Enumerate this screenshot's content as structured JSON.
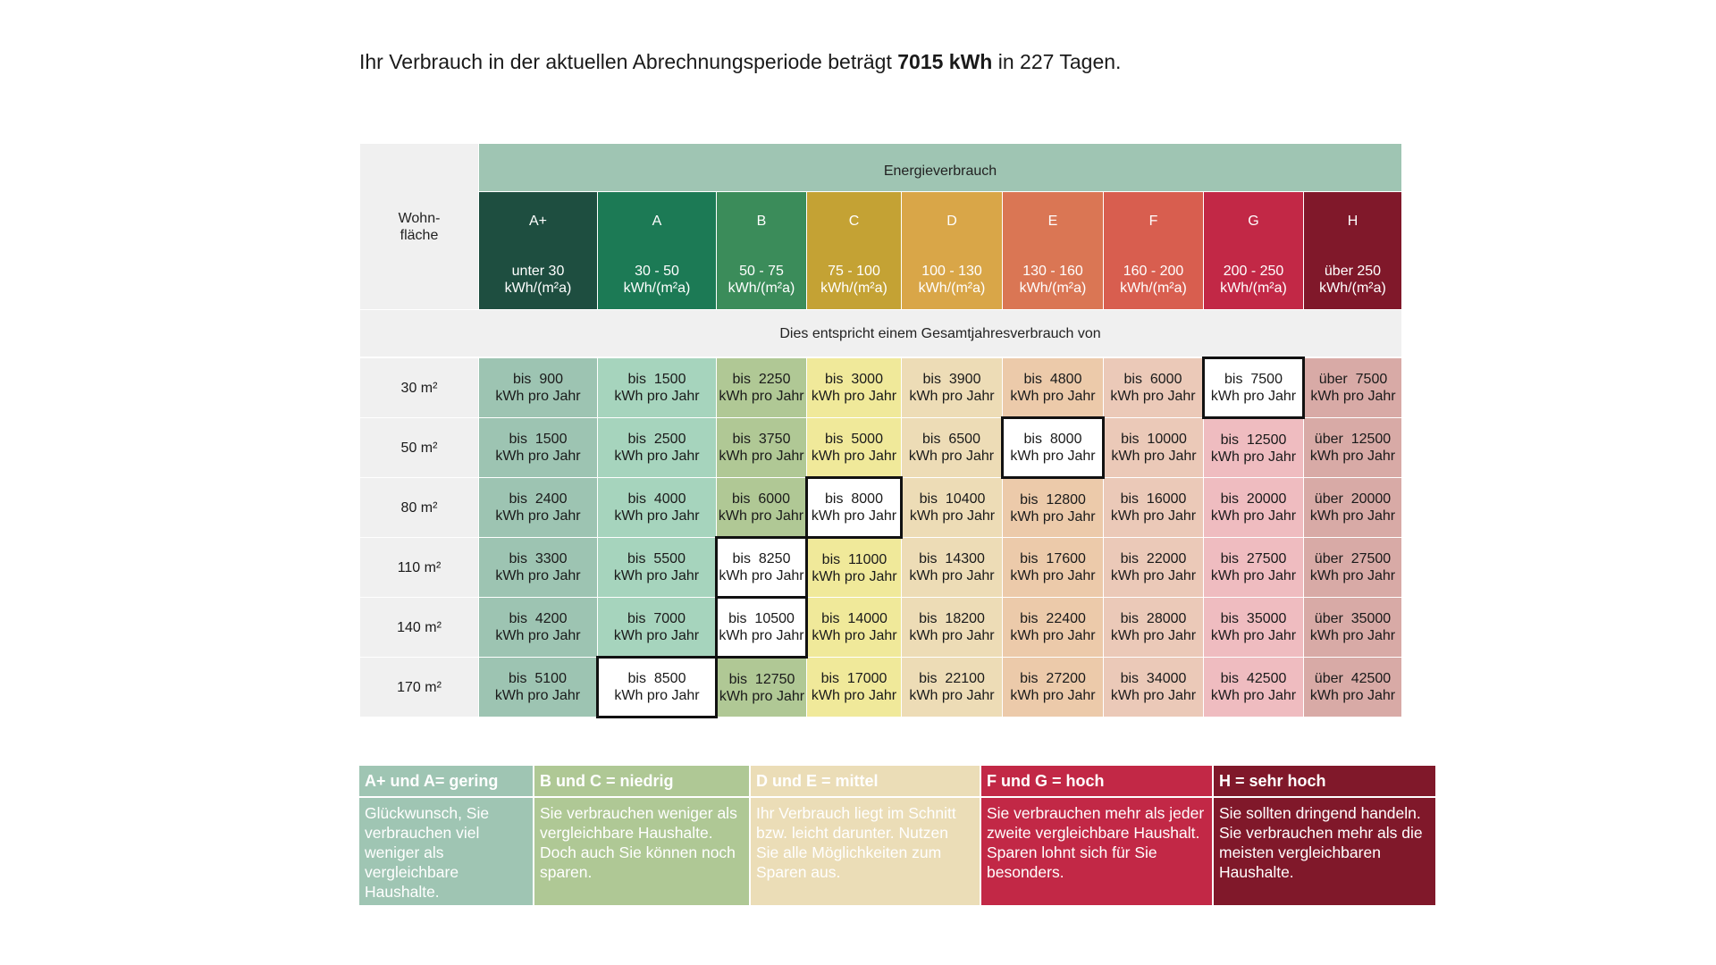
{
  "intro": {
    "prefix": "Ihr Verbrauch in der aktuellen Abrechnungsperiode beträgt ",
    "consumption": "7015 kWh",
    "suffix": " in 227 Tagen."
  },
  "table": {
    "area_header": "Wohn-\nfläche",
    "energy_header": "Energieverbrauch",
    "note": "Dies entspricht einem Gesamtjahresverbrauch von",
    "unit_label": "kWh pro Jahr",
    "classes": [
      {
        "label": "A+",
        "range": "unter 30",
        "range_unit": "kWh/(m²a)",
        "header_color": "#1e4e40",
        "cell_color": "#9dc4b2"
      },
      {
        "label": "A",
        "range": "30 - 50",
        "range_unit": "kWh/(m²a)",
        "header_color": "#1c7a55",
        "cell_color": "#a6d4bd"
      },
      {
        "label": "B",
        "range": "50 - 75",
        "range_unit": "kWh/(m²a)",
        "header_color": "#3b8c5a",
        "cell_color": "#b0c895"
      },
      {
        "label": "C",
        "range": "75 - 100",
        "range_unit": "kWh/(m²a)",
        "header_color": "#c4a234",
        "cell_color": "#f0e99a"
      },
      {
        "label": "D",
        "range": "100 - 130",
        "range_unit": "kWh/(m²a)",
        "header_color": "#d9a648",
        "cell_color": "#eddcb6"
      },
      {
        "label": "E",
        "range": "130 - 160",
        "range_unit": "kWh/(m²a)",
        "header_color": "#da7654",
        "cell_color": "#eccaaa"
      },
      {
        "label": "F",
        "range": "160 - 200",
        "range_unit": "kWh/(m²a)",
        "header_color": "#d85e4f",
        "cell_color": "#ebc9b8"
      },
      {
        "label": "G",
        "range": "200 - 250",
        "range_unit": "kWh/(m²a)",
        "header_color": "#c22846",
        "cell_color": "#efbcc0"
      },
      {
        "label": "H",
        "range": "über 250",
        "range_unit": "kWh/(m²a)",
        "header_color": "#80182a",
        "cell_color": "#d8aaa6"
      }
    ],
    "rows": [
      {
        "area": "30 m²",
        "values": [
          "bis  900",
          "bis  1500",
          "bis  2250",
          "bis  3000",
          "bis  3900",
          "bis  4800",
          "bis  6000",
          "bis  7500",
          "über  7500"
        ],
        "highlight": 7
      },
      {
        "area": "50 m²",
        "values": [
          "bis  1500",
          "bis  2500",
          "bis  3750",
          "bis  5000",
          "bis  6500",
          "bis  8000",
          "bis  10000",
          "bis  12500",
          "über  12500"
        ],
        "highlight": 5
      },
      {
        "area": "80 m²",
        "values": [
          "bis  2400",
          "bis  4000",
          "bis  6000",
          "bis  8000",
          "bis  10400",
          "bis  12800",
          "bis  16000",
          "bis  20000",
          "über  20000"
        ],
        "highlight": 3
      },
      {
        "area": "110 m²",
        "values": [
          "bis  3300",
          "bis  5500",
          "bis  8250",
          "bis  11000",
          "bis  14300",
          "bis  17600",
          "bis  22000",
          "bis  27500",
          "über  27500"
        ],
        "highlight": 2
      },
      {
        "area": "140 m²",
        "values": [
          "bis  4200",
          "bis  7000",
          "bis  10500",
          "bis  14000",
          "bis  18200",
          "bis  22400",
          "bis  28000",
          "bis  35000",
          "über  35000"
        ],
        "highlight": 2
      },
      {
        "area": "170 m²",
        "values": [
          "bis  5100",
          "bis  8500",
          "bis  12750",
          "bis  17000",
          "bis  22100",
          "bis  27200",
          "bis  34000",
          "bis  42500",
          "über  42500"
        ],
        "highlight": 1
      }
    ]
  },
  "legend": [
    {
      "title": "A+ und A= gering",
      "text": "Glückwunsch, Sie verbrauchen viel weniger als vergleichbare Haushalte.",
      "bg": "#9fc5b3",
      "fg": "#ffffff"
    },
    {
      "title": "B und C = niedrig",
      "text": "Sie verbrauchen weniger als vergleichbare Haushalte. Doch auch Sie können noch sparen.",
      "bg": "#afc895",
      "fg": "#ffffff"
    },
    {
      "title": "D und E = mittel",
      "text": "Ihr Verbrauch liegt im Schnitt bzw. leicht  darunter. Nutzen Sie alle Möglichkeiten zum Sparen aus.",
      "bg": "#ebddb7",
      "fg": "#ffffff"
    },
    {
      "title": "F und G = hoch",
      "text": "Sie verbrauchen mehr als jeder zweite vergleichbare Haushalt. Sparen lohnt sich für Sie besonders.",
      "bg": "#c22846",
      "fg": "#ffffff"
    },
    {
      "title": "H = sehr hoch",
      "text": "Sie sollten dringend handeln. Sie verbrauchen mehr als die meisten vergleichbaren Haushalte.",
      "bg": "#80182a",
      "fg": "#ffffff"
    }
  ]
}
